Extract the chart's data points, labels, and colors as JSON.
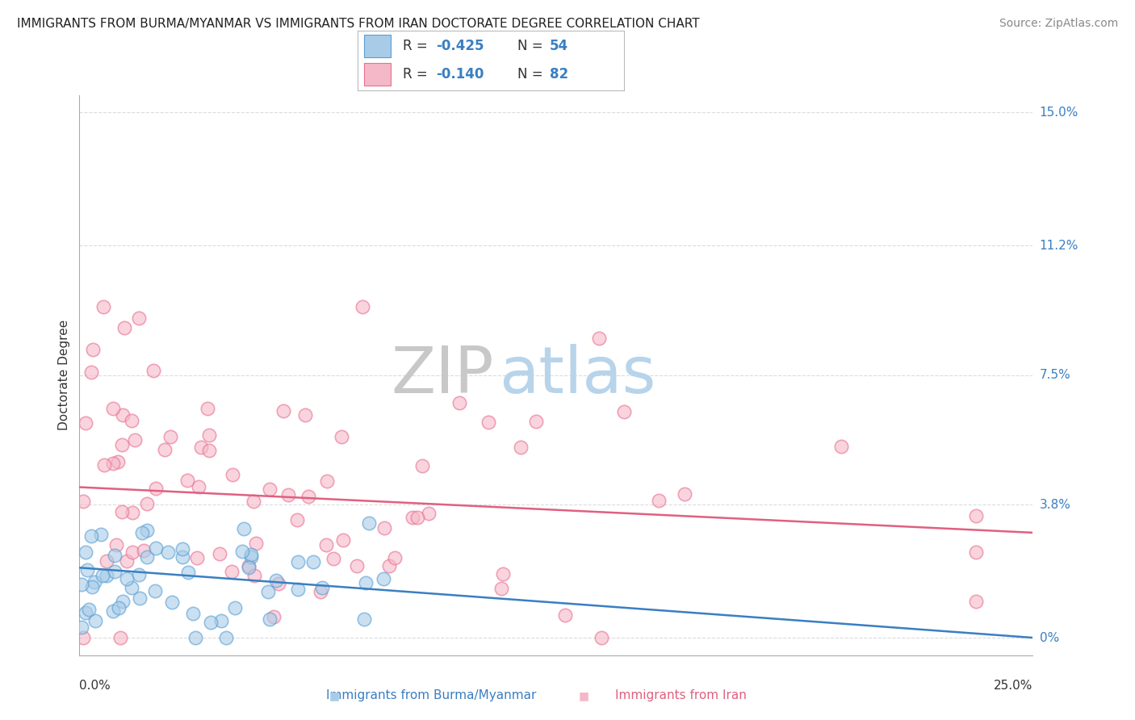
{
  "title": "IMMIGRANTS FROM BURMA/MYANMAR VS IMMIGRANTS FROM IRAN DOCTORATE DEGREE CORRELATION CHART",
  "source": "Source: ZipAtlas.com",
  "xlabel_blue": "Immigrants from Burma/Myanmar",
  "xlabel_pink": "Immigrants from Iran",
  "ylabel": "Doctorate Degree",
  "xlim": [
    0.0,
    0.25
  ],
  "ylim": [
    -0.005,
    0.155
  ],
  "yticks": [
    0.0,
    0.038,
    0.075,
    0.112,
    0.15
  ],
  "ytick_labels": [
    "0%",
    "3.8%",
    "7.5%",
    "11.2%",
    "15.0%"
  ],
  "xtick_left_label": "0.0%",
  "xtick_right_label": "25.0%",
  "blue_face_color": "#a8cce8",
  "blue_edge_color": "#5a9fd4",
  "blue_line_color": "#3a7fc1",
  "pink_face_color": "#f5b8c8",
  "pink_edge_color": "#e87090",
  "pink_line_color": "#e06080",
  "right_tick_color": "#3a7fc1",
  "legend_R_blue": "-0.425",
  "legend_N_blue": "54",
  "legend_R_pink": "-0.140",
  "legend_N_pink": "82",
  "blue_N": 54,
  "pink_N": 82,
  "title_fontsize": 11,
  "ylabel_fontsize": 11,
  "xlabel_fontsize": 11,
  "tick_fontsize": 11,
  "legend_fontsize": 12,
  "source_fontsize": 10,
  "grid_color": "#cccccc",
  "background_color": "#ffffff"
}
